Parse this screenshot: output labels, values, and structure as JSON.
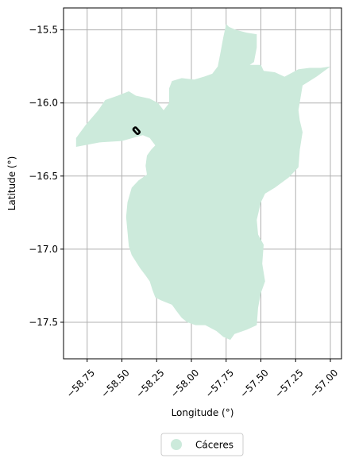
{
  "chart_data": {
    "type": "map",
    "xlabel": "Longitude (°)",
    "ylabel": "Latitude (°)",
    "xlim": [
      -58.92,
      -56.92
    ],
    "ylim": [
      -17.75,
      -15.35
    ],
    "xticks": [
      -58.75,
      -58.5,
      -58.25,
      -58.0,
      -57.75,
      -57.5,
      -57.25,
      -57.0
    ],
    "xtick_labels": [
      "−58.75",
      "−58.50",
      "−58.25",
      "−58.00",
      "−57.75",
      "−57.50",
      "−57.25",
      "−57.00"
    ],
    "yticks": [
      -15.5,
      -16.0,
      -16.5,
      -17.0,
      -17.5
    ],
    "ytick_labels": [
      "−15.5",
      "−16.0",
      "−16.5",
      "−17.0",
      "−17.5"
    ],
    "grid": true,
    "legend_position": "bottom-center",
    "region": {
      "name": "Cáceres",
      "color": "#cceadb",
      "boundary": [
        [
          -57.75,
          -15.46
        ],
        [
          -57.73,
          -15.48
        ],
        [
          -57.68,
          -15.5
        ],
        [
          -57.6,
          -15.52
        ],
        [
          -57.53,
          -15.53
        ],
        [
          -57.53,
          -15.62
        ],
        [
          -57.55,
          -15.72
        ],
        [
          -57.58,
          -15.74
        ],
        [
          -57.5,
          -15.74
        ],
        [
          -57.48,
          -15.78
        ],
        [
          -57.4,
          -15.79
        ],
        [
          -57.33,
          -15.82
        ],
        [
          -57.23,
          -15.77
        ],
        [
          -57.15,
          -15.76
        ],
        [
          -57.07,
          -15.76
        ],
        [
          -57.0,
          -15.75
        ],
        [
          -57.1,
          -15.82
        ],
        [
          -57.2,
          -15.88
        ],
        [
          -57.23,
          -16.05
        ],
        [
          -57.22,
          -16.12
        ],
        [
          -57.2,
          -16.2
        ],
        [
          -57.22,
          -16.32
        ],
        [
          -57.23,
          -16.44
        ],
        [
          -57.3,
          -16.51
        ],
        [
          -57.4,
          -16.58
        ],
        [
          -57.47,
          -16.62
        ],
        [
          -57.5,
          -16.68
        ],
        [
          -57.53,
          -16.8
        ],
        [
          -57.52,
          -16.9
        ],
        [
          -57.48,
          -16.97
        ],
        [
          -57.49,
          -17.1
        ],
        [
          -57.47,
          -17.22
        ],
        [
          -57.5,
          -17.3
        ],
        [
          -57.52,
          -17.4
        ],
        [
          -57.53,
          -17.52
        ],
        [
          -57.6,
          -17.55
        ],
        [
          -57.69,
          -17.58
        ],
        [
          -57.72,
          -17.62
        ],
        [
          -57.77,
          -17.6
        ],
        [
          -57.82,
          -17.56
        ],
        [
          -57.9,
          -17.52
        ],
        [
          -57.97,
          -17.52
        ],
        [
          -58.03,
          -17.5
        ],
        [
          -58.07,
          -17.47
        ],
        [
          -58.11,
          -17.42
        ],
        [
          -58.14,
          -17.38
        ],
        [
          -58.22,
          -17.35
        ],
        [
          -58.26,
          -17.33
        ],
        [
          -58.28,
          -17.28
        ],
        [
          -58.3,
          -17.22
        ],
        [
          -58.33,
          -17.18
        ],
        [
          -58.37,
          -17.13
        ],
        [
          -58.43,
          -17.04
        ],
        [
          -58.45,
          -16.98
        ],
        [
          -58.46,
          -16.88
        ],
        [
          -58.47,
          -16.78
        ],
        [
          -58.46,
          -16.68
        ],
        [
          -58.43,
          -16.58
        ],
        [
          -58.38,
          -16.53
        ],
        [
          -58.32,
          -16.49
        ],
        [
          -58.33,
          -16.43
        ],
        [
          -58.32,
          -16.36
        ],
        [
          -58.29,
          -16.32
        ],
        [
          -58.26,
          -16.29
        ],
        [
          -58.3,
          -16.24
        ],
        [
          -58.35,
          -16.22
        ],
        [
          -58.5,
          -16.26
        ],
        [
          -58.66,
          -16.27
        ],
        [
          -58.83,
          -16.3
        ],
        [
          -58.83,
          -16.24
        ],
        [
          -58.76,
          -16.15
        ],
        [
          -58.67,
          -16.05
        ],
        [
          -58.62,
          -15.98
        ],
        [
          -58.53,
          -15.95
        ],
        [
          -58.45,
          -15.92
        ],
        [
          -58.4,
          -15.95
        ],
        [
          -58.3,
          -15.97
        ],
        [
          -58.24,
          -16.0
        ],
        [
          -58.2,
          -16.05
        ],
        [
          -58.16,
          -16.0
        ],
        [
          -58.16,
          -15.9
        ],
        [
          -58.14,
          -15.85
        ],
        [
          -58.07,
          -15.83
        ],
        [
          -57.98,
          -15.84
        ],
        [
          -57.91,
          -15.82
        ],
        [
          -57.85,
          -15.8
        ],
        [
          -57.81,
          -15.75
        ],
        [
          -57.79,
          -15.65
        ],
        [
          -57.77,
          -15.55
        ],
        [
          -57.75,
          -15.46
        ]
      ]
    },
    "marker": {
      "lon": -58.395,
      "lat": -16.19,
      "length_deg": 0.05,
      "angle_deg": 48
    }
  }
}
